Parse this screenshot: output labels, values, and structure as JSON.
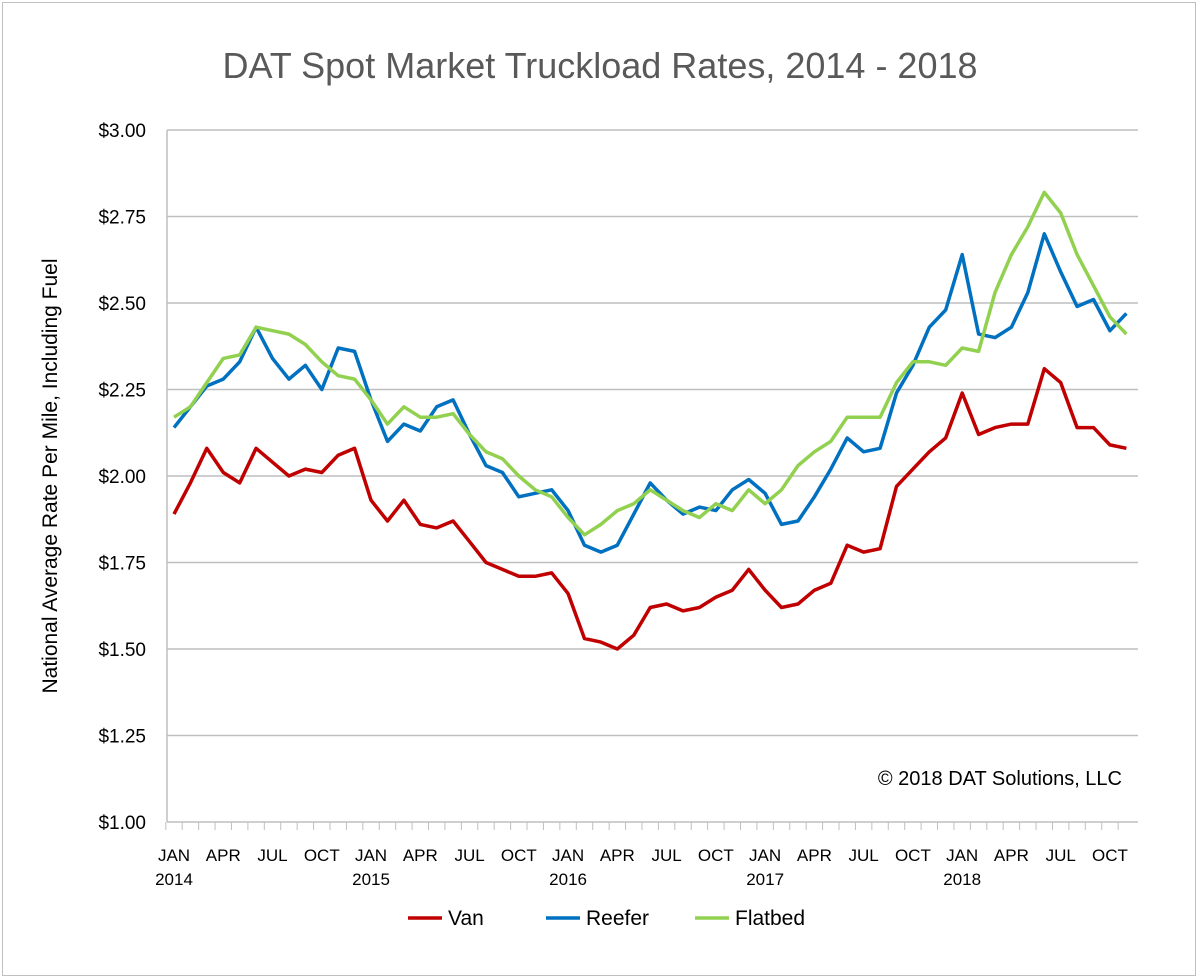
{
  "chart_data": {
    "type": "line",
    "title": "DAT Spot Market Truckload Rates, 2014 - 2018",
    "xlabel": "",
    "ylabel": "National Average Rate Per Mile, Including Fuel",
    "annotation": "© 2018 DAT Solutions, LLC",
    "ylim": [
      1.0,
      3.0
    ],
    "yticks": [
      "$1.00",
      "$1.25",
      "$1.50",
      "$1.75",
      "$2.00",
      "$2.25",
      "$2.50",
      "$2.75",
      "$3.00"
    ],
    "x_start": "2014-01",
    "x_end": "2018-11",
    "x_month_labels": [
      "JAN",
      "APR",
      "JUL",
      "OCT"
    ],
    "x_year_labels": [
      "2014",
      "2015",
      "2016",
      "2017",
      "2018"
    ],
    "grid": "horizontal",
    "legend": "bottom",
    "series": [
      {
        "name": "Van",
        "color": "#c00000",
        "values": [
          1.89,
          1.98,
          2.08,
          2.01,
          1.98,
          2.08,
          2.04,
          2.0,
          2.02,
          2.01,
          2.06,
          2.08,
          1.93,
          1.87,
          1.93,
          1.86,
          1.85,
          1.87,
          1.81,
          1.75,
          1.73,
          1.71,
          1.71,
          1.72,
          1.66,
          1.53,
          1.52,
          1.5,
          1.54,
          1.62,
          1.63,
          1.61,
          1.62,
          1.65,
          1.67,
          1.73,
          1.67,
          1.62,
          1.63,
          1.67,
          1.69,
          1.8,
          1.78,
          1.79,
          1.97,
          2.02,
          2.07,
          2.11,
          2.24,
          2.12,
          2.14,
          2.15,
          2.15,
          2.31,
          2.27,
          2.14,
          2.14,
          2.09,
          2.08
        ]
      },
      {
        "name": "Reefer",
        "color": "#0070c0",
        "values": [
          2.14,
          2.2,
          2.26,
          2.28,
          2.33,
          2.43,
          2.34,
          2.28,
          2.32,
          2.25,
          2.37,
          2.36,
          2.22,
          2.1,
          2.15,
          2.13,
          2.2,
          2.22,
          2.12,
          2.03,
          2.01,
          1.94,
          1.95,
          1.96,
          1.9,
          1.8,
          1.78,
          1.8,
          1.89,
          1.98,
          1.93,
          1.89,
          1.91,
          1.9,
          1.96,
          1.99,
          1.95,
          1.86,
          1.87,
          1.94,
          2.02,
          2.11,
          2.07,
          2.08,
          2.24,
          2.32,
          2.43,
          2.48,
          2.64,
          2.41,
          2.4,
          2.43,
          2.53,
          2.7,
          2.59,
          2.49,
          2.51,
          2.42,
          2.47
        ]
      },
      {
        "name": "Flatbed",
        "color": "#92d050",
        "values": [
          2.17,
          2.2,
          2.27,
          2.34,
          2.35,
          2.43,
          2.42,
          2.41,
          2.38,
          2.33,
          2.29,
          2.28,
          2.22,
          2.15,
          2.2,
          2.17,
          2.17,
          2.18,
          2.12,
          2.07,
          2.05,
          2.0,
          1.96,
          1.94,
          1.88,
          1.83,
          1.86,
          1.9,
          1.92,
          1.96,
          1.93,
          1.9,
          1.88,
          1.92,
          1.9,
          1.96,
          1.92,
          1.96,
          2.03,
          2.07,
          2.1,
          2.17,
          2.17,
          2.17,
          2.27,
          2.33,
          2.33,
          2.32,
          2.37,
          2.36,
          2.53,
          2.64,
          2.72,
          2.82,
          2.76,
          2.64,
          2.55,
          2.46,
          2.41
        ]
      }
    ]
  }
}
